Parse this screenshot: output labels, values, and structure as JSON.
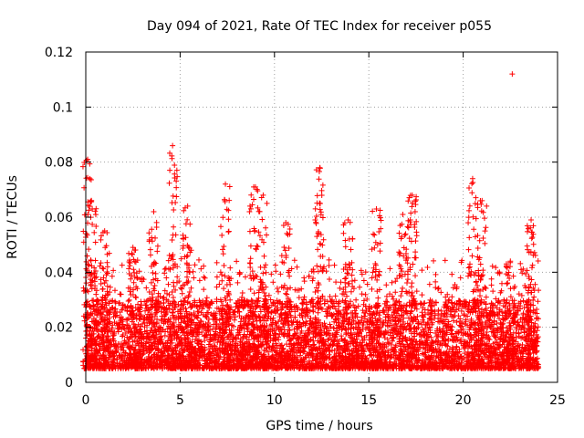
{
  "chart_data": {
    "type": "scatter",
    "title": "Day 094 of 2021, Rate Of TEC Index for receiver p055",
    "xlabel": "GPS time / hours",
    "ylabel": "ROTI / TECUs",
    "xlim": [
      0,
      25
    ],
    "ylim": [
      0,
      0.12
    ],
    "x_ticks": [
      0,
      5,
      10,
      15,
      20,
      25
    ],
    "x_tick_labels": [
      "0",
      "5",
      "10",
      "15",
      "20",
      "25"
    ],
    "y_ticks": [
      0,
      0.02,
      0.04,
      0.06,
      0.08,
      0.1,
      0.12
    ],
    "y_tick_labels": [
      "0",
      "0.02",
      "0.04",
      "0.06",
      "0.08",
      "0.1",
      "0.12"
    ],
    "grid": true,
    "marker": "+",
    "color": "#ff0000",
    "x_data_range": [
      0,
      24
    ],
    "baseline_range": [
      0.005,
      0.03
    ],
    "peaks": [
      {
        "x": 0.1,
        "y": 0.081
      },
      {
        "x": 0.3,
        "y": 0.066
      },
      {
        "x": 1.0,
        "y": 0.055
      },
      {
        "x": 2.5,
        "y": 0.049
      },
      {
        "x": 3.6,
        "y": 0.062
      },
      {
        "x": 4.6,
        "y": 0.086
      },
      {
        "x": 5.4,
        "y": 0.064
      },
      {
        "x": 7.4,
        "y": 0.072
      },
      {
        "x": 8.9,
        "y": 0.071
      },
      {
        "x": 9.4,
        "y": 0.068
      },
      {
        "x": 10.6,
        "y": 0.058
      },
      {
        "x": 12.4,
        "y": 0.078
      },
      {
        "x": 13.9,
        "y": 0.059
      },
      {
        "x": 15.4,
        "y": 0.063
      },
      {
        "x": 16.8,
        "y": 0.061
      },
      {
        "x": 17.3,
        "y": 0.068
      },
      {
        "x": 20.5,
        "y": 0.074
      },
      {
        "x": 21.0,
        "y": 0.066
      },
      {
        "x": 22.5,
        "y": 0.044
      },
      {
        "x": 23.6,
        "y": 0.059
      }
    ],
    "outliers": [
      {
        "x": 22.6,
        "y": 0.112
      }
    ]
  }
}
